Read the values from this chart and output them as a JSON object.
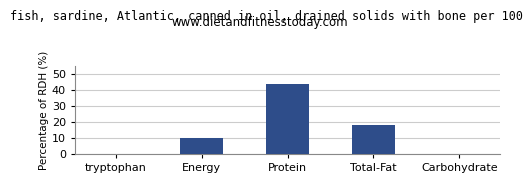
{
  "title": "fish, sardine, Atlantic, canned in oil, drained solids with bone per 100",
  "subtitle": "www.dietandfitnesstoday.com",
  "categories": [
    "tryptophan",
    "Energy",
    "Protein",
    "Total-Fat",
    "Carbohydrate"
  ],
  "values": [
    0,
    10,
    44,
    18,
    0
  ],
  "bar_color": "#2e4d8a",
  "ylabel": "Percentage of RDH (%)",
  "ylim": [
    0,
    55
  ],
  "yticks": [
    0,
    10,
    20,
    30,
    40,
    50
  ],
  "background_color": "#ffffff",
  "plot_bg_color": "#ffffff",
  "title_fontsize": 8.5,
  "subtitle_fontsize": 8.5,
  "ylabel_fontsize": 7.5,
  "xlabel_fontsize": 8,
  "tick_fontsize": 8,
  "grid_color": "#cccccc"
}
